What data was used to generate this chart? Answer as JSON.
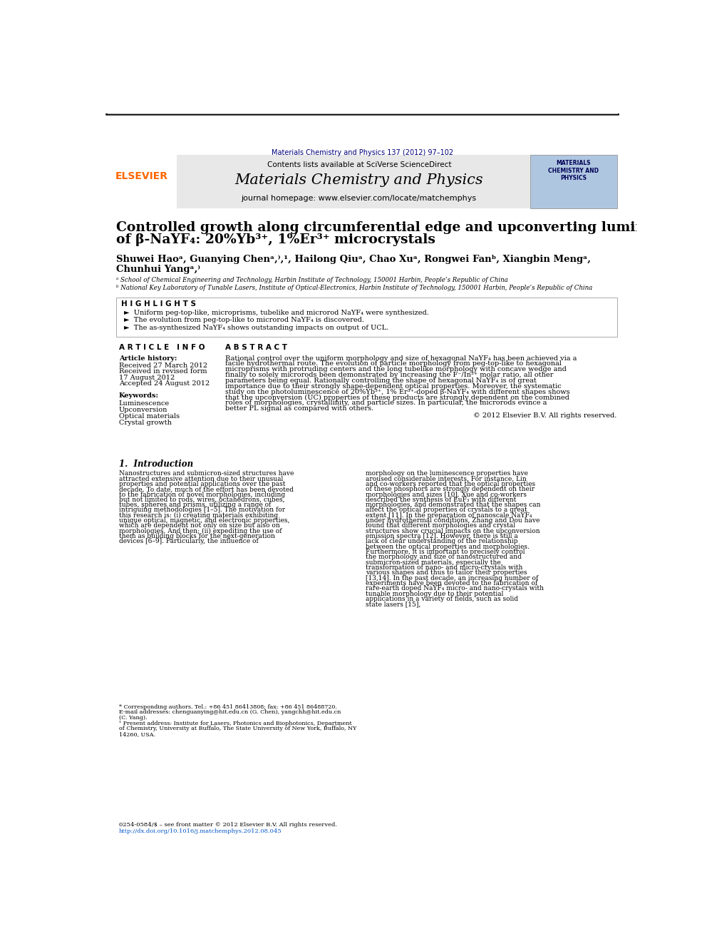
{
  "page_bg": "#ffffff",
  "journal_info": "Materials Chemistry and Physics 137 (2012) 97–102",
  "journal_name": "Materials Chemistry and Physics",
  "contents_text": "Contents lists available at SciVerse ScienceDirect",
  "homepage_text": "journal homepage: www.elsevier.com/locate/matchemphys",
  "elsevier_color": "#FF6600",
  "header_bg": "#e8e8e8",
  "title_line1": "Controlled growth along circumferential edge and upconverting luminescence",
  "title_line2": "of β-NaYF₄: 20%Yb³⁺, 1%Er³⁺ microcrystals",
  "authors": "Shuwei Haoᵃ, Guanying Chenᵃ,⁾,¹, Hailong Qiuᵃ, Chao Xuᵃ, Rongwei Fanᵇ, Xiangbin Mengᵃ,",
  "authors2": "Chunhui Yangᵃ,⁾",
  "affil_a": "ᵃ School of Chemical Engineering and Technology, Harbin Institute of Technology, 150001 Harbin, People’s Republic of China",
  "affil_b": "ᵇ National Key Laboratory of Tunable Lasers, Institute of Optical-Electronics, Harbin Institute of Technology, 150001 Harbin, People’s Republic of China",
  "highlights_title": "H I G H L I G H T S",
  "highlight1": "►  Uniform peg-top-like, microprisms, tubelike and microrod NaYF₄ were synthesized.",
  "highlight2": "►  The evolution from peg-top-like to microrod NaYF₄ is discovered.",
  "highlight3": "►  The as-synthesized NaYF₄ shows outstanding impacts on output of UCL.",
  "article_info_title": "A R T I C L E   I N F O",
  "article_history": "Article history:",
  "received": "Received 27 March 2012",
  "revised": "Received in revised form",
  "revised2": "17 August 2012",
  "accepted": "Accepted 24 August 2012",
  "keywords_title": "Keywords:",
  "keyword1": "Luminescence",
  "keyword2": "Upconversion",
  "keyword3": "Optical materials",
  "keyword4": "Crystal growth",
  "abstract_title": "A B S T R A C T",
  "abstract_text": "Rational control over the uniform morphology and size of hexagonal NaYF₄ has been achieved via a facile hydrothermal route. The evolution of particle morphology from peg-top-like to hexagonal microprisms with protruding centers and the long tubelike morphology with concave wedge and finally to solely microrods been demonstrated by increasing the F⁻/In³⁺ molar ratio, all other parameters being equal. Rationally controlling the shape of hexagonal NaYF₄ is of great importance due to their strongly shape-dependent optical properties. Moreover, the systematic study on the photoluminescence of 20%Yb³⁺, 1% Er³⁺-doped β-NaYF₄ with different shapes shows that the upconversion (UC) properties of these products are strongly dependent on the combined roles of morphologies, crystallinity, and particle sizes. In particular, the microrods evince a better PL signal as compared with others.",
  "copyright": "© 2012 Elsevier B.V. All rights reserved.",
  "intro_title": "1.  Introduction",
  "intro_text_left": "Nanostructures and submicron-sized structures have attracted extensive attention due to their unusual properties and potential applications over the past decade. To date, much of the effort has been devoted to the fabrication of novel morphologies, including but not limited to rods, wires, octahedrons, cubes, tubes, spheres and prisms, utilizing a range of intriguing methodologies [1–5]. The motivation for this research is: (i) creating materials exhibiting unique optical, magnetic, and electronic properties, which are dependent not only on size but also on morphologies. And then; (ii) expediting the use of them as building blocks for the next-generation devices [6–9]. Particularly, the influence of",
  "intro_text_right": "morphology on the luminescence properties have aroused considerable interests. For instance, Lin and co-workers reported that the optical properties of these phosphors are strongly dependent on their morphologies and sizes [10]. Xue and co-workers described the synthesis of EuF₃ with different morphologies, and demonstrated that the shapes can affect the optical properties of crystals to a great extent [11]. In the preparation of nanoscale NaYF₄ under hydrothermal conditions, Zhang and Dou have found that different morphologies and crystal structures show crucial impacts on the upconversion emission spectra [12]. However, there is still a lack of clear understanding of the relationship between the optical properties and morphologies. Furthermore, it is important to precisely control the morphology and size of nanostructured and submicron-sized materials, especially the transformation of nano- and micro-crystals with various shapes and thus to tailor their properties [13,14].",
  "intro_text_right2": "In the past decade, an increasing number of experiments have been devoted to the fabrication of rare-earth doped NaYF₄ micro- and nano-crystals with tunable morphology due to their potential applications in a variety of fields, such as solid state lasers [15],",
  "footnote1": "* Corresponding authors. Tel.: +86 451 86413808; fax: +86 451 86488720.",
  "footnote2": "E-mail addresses: chenguanying@hit.edu.cn (G. Chen), yangchh@hit.edu.cn",
  "footnote3": "(C. Yang).",
  "footnote4": "¹ Present address: Institute for Lasers, Photonics and Biophotonics, Department",
  "footnote5": "of Chemistry, University at Buffalo, The State University of New York, Buffalo, NY",
  "footnote6": "14260, USA.",
  "footer_left": "0254-0584/$ – see front matter © 2012 Elsevier B.V. All rights reserved.",
  "footer_doi": "http://dx.doi.org/10.1016/j.matchemphys.2012.08.045"
}
